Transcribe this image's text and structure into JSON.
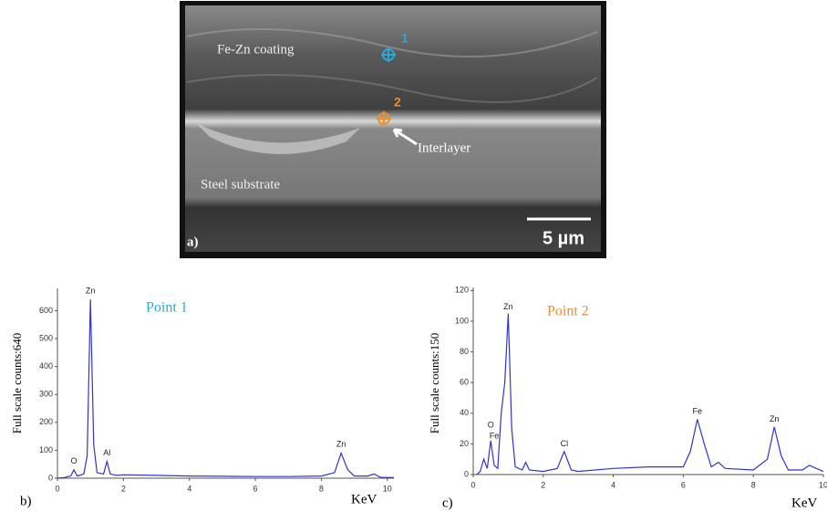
{
  "image": {
    "labels": {
      "coating": "Fe-Zn coating",
      "point1": "1",
      "point2": "2",
      "interlayer": "Interlayer",
      "substrate": "Steel substrate",
      "scale": "5 µm",
      "panel": "a)"
    }
  },
  "chart_data": [
    {
      "type": "line",
      "panel": "b)",
      "title": "Point 1",
      "title_color": "#2aa8d8",
      "y_label": "Full scale counts:640",
      "x_label": "KeV",
      "color": "#3333cc",
      "xlim": [
        0,
        10.2
      ],
      "xticks": [
        0,
        2,
        4,
        6,
        8,
        10
      ],
      "ylim": [
        0,
        680
      ],
      "yticks": [
        0,
        100,
        200,
        300,
        400,
        500,
        600
      ],
      "x": [
        0,
        0.2,
        0.4,
        0.5,
        0.6,
        0.8,
        0.9,
        1.0,
        1.1,
        1.2,
        1.4,
        1.5,
        1.6,
        1.8,
        2.0,
        3,
        4,
        5,
        6,
        7,
        8,
        8.4,
        8.6,
        8.8,
        9.0,
        9.4,
        9.6,
        9.8,
        10.2
      ],
      "values": [
        0,
        2,
        8,
        30,
        8,
        15,
        80,
        640,
        120,
        20,
        15,
        60,
        15,
        10,
        12,
        10,
        8,
        7,
        6,
        6,
        8,
        20,
        90,
        30,
        8,
        8,
        15,
        3,
        2
      ],
      "annotations": [
        {
          "text": "O",
          "x": 0.5,
          "y": 60
        },
        {
          "text": "Zn",
          "x": 1.0,
          "y": 670
        },
        {
          "text": "Al",
          "x": 1.5,
          "y": 90
        },
        {
          "text": "Zn",
          "x": 8.6,
          "y": 120
        }
      ]
    },
    {
      "type": "line",
      "panel": "c)",
      "title": "Point 2",
      "title_color": "#e8902a",
      "y_label": "Full scale counts:150",
      "x_label": "KeV",
      "color": "#3333cc",
      "xlim": [
        0,
        10
      ],
      "xticks": [
        0,
        2,
        4,
        6,
        8,
        10
      ],
      "ylim": [
        0,
        122
      ],
      "yticks": [
        0,
        20,
        40,
        60,
        80,
        100,
        120
      ],
      "x": [
        0.1,
        0.2,
        0.3,
        0.4,
        0.5,
        0.6,
        0.7,
        0.8,
        0.9,
        1.0,
        1.1,
        1.2,
        1.4,
        1.5,
        1.6,
        2.0,
        2.4,
        2.6,
        2.8,
        3.0,
        4,
        5,
        6.0,
        6.2,
        6.4,
        6.6,
        6.8,
        7.0,
        7.2,
        8.0,
        8.4,
        8.6,
        8.8,
        9.0,
        9.4,
        9.6,
        9.8,
        10.0
      ],
      "values": [
        0,
        2,
        10,
        4,
        22,
        6,
        4,
        40,
        60,
        105,
        30,
        5,
        3,
        8,
        3,
        2,
        4,
        15,
        3,
        2,
        4,
        5,
        5,
        15,
        36,
        20,
        5,
        8,
        4,
        3,
        10,
        31,
        12,
        3,
        3,
        6,
        4,
        2
      ],
      "annotations": [
        {
          "text": "O",
          "x": 0.5,
          "y": 32
        },
        {
          "text": "Fe",
          "x": 0.6,
          "y": 25
        },
        {
          "text": "Zn",
          "x": 1.0,
          "y": 109
        },
        {
          "text": "Cl",
          "x": 2.6,
          "y": 20
        },
        {
          "text": "Fe",
          "x": 6.4,
          "y": 41
        },
        {
          "text": "Zn",
          "x": 8.6,
          "y": 36
        }
      ]
    }
  ]
}
